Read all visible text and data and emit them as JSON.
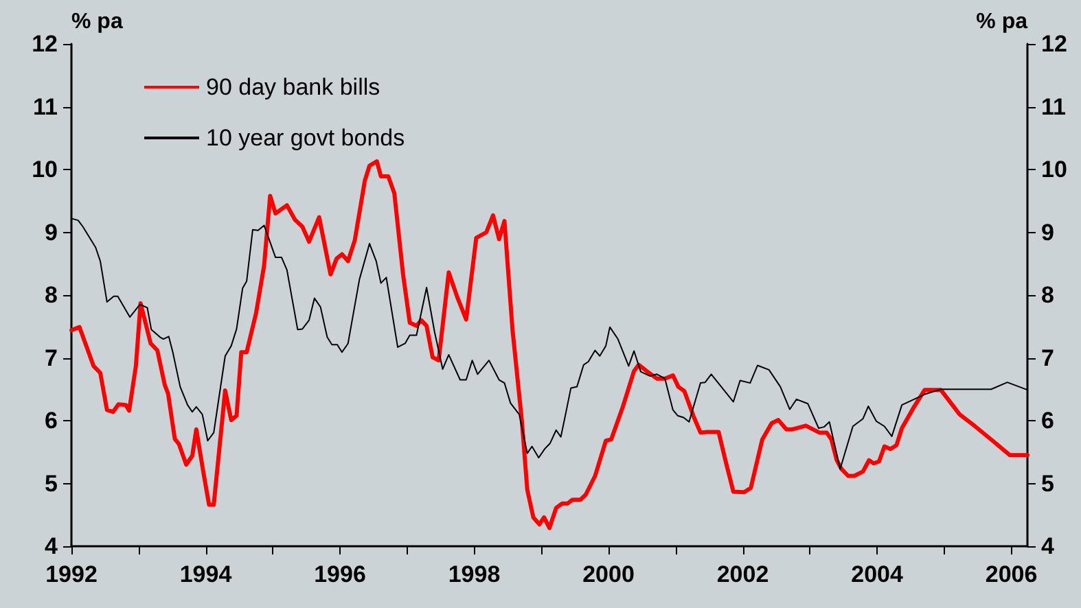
{
  "chart_data": {
    "type": "line",
    "ylabel": "% pa",
    "y2label": "% pa",
    "xlim": [
      1992,
      2006.24
    ],
    "xticks": [
      1992,
      {
        "value": 1993,
        "label": null
      },
      1994,
      {
        "value": 1995,
        "label": null
      },
      1996,
      {
        "value": 1997,
        "label": null
      },
      1998,
      {
        "value": 1999,
        "label": null
      },
      2000,
      {
        "value": 2001,
        "label": null
      },
      2002,
      {
        "value": 2003,
        "label": null
      },
      2004,
      {
        "value": 2005,
        "label": null
      },
      2006
    ],
    "ylim": [
      4,
      12
    ],
    "yticks": [
      4,
      5,
      6,
      7,
      8,
      9,
      10,
      11,
      12
    ],
    "y2lim": [
      4,
      12
    ],
    "y2ticks": [
      4,
      5,
      6,
      7,
      8,
      9,
      10,
      11,
      12
    ],
    "grid": false,
    "legend": "top left",
    "series": [
      {
        "name": "90 day bank bills",
        "color": "#ff0000",
        "x": [
          1992.0,
          1992.12,
          1992.33,
          1992.43,
          1992.53,
          1992.62,
          1992.7,
          1992.81,
          1992.86,
          1992.96,
          1993.03,
          1993.18,
          1993.28,
          1993.39,
          1993.44,
          1993.54,
          1993.6,
          1993.71,
          1993.8,
          1993.86,
          1993.97,
          1994.05,
          1994.12,
          1994.29,
          1994.38,
          1994.46,
          1994.53,
          1994.61,
          1994.75,
          1994.87,
          1994.96,
          1995.04,
          1995.21,
          1995.33,
          1995.44,
          1995.54,
          1995.69,
          1995.86,
          1995.95,
          1996.03,
          1996.12,
          1996.22,
          1996.37,
          1996.44,
          1996.55,
          1996.61,
          1996.72,
          1996.81,
          1996.94,
          1997.04,
          1997.14,
          1997.21,
          1997.29,
          1997.38,
          1997.47,
          1997.62,
          1997.75,
          1997.88,
          1998.03,
          1998.18,
          1998.28,
          1998.37,
          1998.45,
          1998.57,
          1998.71,
          1998.79,
          1998.88,
          1998.97,
          1999.04,
          1999.12,
          1999.22,
          1999.31,
          1999.39,
          1999.46,
          1999.58,
          1999.66,
          1999.8,
          1999.96,
          2000.04,
          2000.21,
          2000.38,
          2000.45,
          2000.58,
          2000.72,
          2000.84,
          2000.96,
          2001.04,
          2001.13,
          2001.27,
          2001.37,
          2001.47,
          2001.64,
          2001.75,
          2001.86,
          2002.02,
          2002.12,
          2002.29,
          2002.43,
          2002.53,
          2002.65,
          2002.73,
          2002.94,
          2003.14,
          2003.25,
          2003.32,
          2003.4,
          2003.47,
          2003.57,
          2003.66,
          2003.79,
          2003.88,
          2003.95,
          2004.03,
          2004.11,
          2004.2,
          2004.29,
          2004.37,
          2004.54,
          2004.71,
          2004.85,
          2004.95,
          2005.23,
          2005.46,
          2005.7,
          2005.98,
          2006.24
        ],
        "values": [
          7.44,
          7.49,
          6.87,
          6.76,
          6.17,
          6.14,
          6.26,
          6.25,
          6.16,
          6.87,
          7.87,
          7.23,
          7.12,
          6.57,
          6.43,
          5.71,
          5.63,
          5.3,
          5.44,
          5.86,
          5.15,
          4.66,
          4.66,
          6.48,
          6.01,
          6.08,
          7.09,
          7.09,
          7.71,
          8.47,
          9.58,
          9.3,
          9.43,
          9.2,
          9.09,
          8.85,
          9.24,
          8.33,
          8.58,
          8.65,
          8.54,
          8.87,
          9.82,
          10.06,
          10.13,
          9.89,
          9.89,
          9.62,
          8.33,
          7.56,
          7.51,
          7.6,
          7.51,
          7.01,
          6.96,
          8.36,
          7.96,
          7.61,
          8.91,
          9.0,
          9.27,
          8.89,
          9.18,
          7.45,
          5.99,
          4.9,
          4.46,
          4.35,
          4.46,
          4.29,
          4.61,
          4.68,
          4.68,
          4.74,
          4.74,
          4.82,
          5.12,
          5.68,
          5.7,
          6.21,
          6.79,
          6.89,
          6.78,
          6.67,
          6.67,
          6.72,
          6.54,
          6.47,
          6.06,
          5.81,
          5.82,
          5.82,
          5.33,
          4.87,
          4.86,
          4.93,
          5.7,
          5.96,
          6.01,
          5.86,
          5.86,
          5.92,
          5.81,
          5.81,
          5.7,
          5.37,
          5.23,
          5.12,
          5.12,
          5.19,
          5.37,
          5.32,
          5.35,
          5.59,
          5.55,
          5.61,
          5.88,
          6.2,
          6.49,
          6.49,
          6.49,
          6.1,
          5.91,
          5.7,
          5.45,
          5.45
        ]
      },
      {
        "name": "10 year govt bonds",
        "color": "#000000",
        "x": [
          1992.0,
          1992.1,
          1992.17,
          1992.36,
          1992.43,
          1992.53,
          1992.63,
          1992.69,
          1992.87,
          1993.02,
          1993.13,
          1993.19,
          1993.32,
          1993.37,
          1993.45,
          1993.51,
          1993.62,
          1993.73,
          1993.8,
          1993.86,
          1993.95,
          1994.03,
          1994.12,
          1994.29,
          1994.38,
          1994.46,
          1994.55,
          1994.61,
          1994.7,
          1994.78,
          1994.87,
          1994.96,
          1995.04,
          1995.13,
          1995.21,
          1995.37,
          1995.44,
          1995.54,
          1995.62,
          1995.71,
          1995.81,
          1995.88,
          1995.96,
          1996.03,
          1996.12,
          1996.29,
          1996.44,
          1996.54,
          1996.61,
          1996.69,
          1996.86,
          1996.97,
          1997.04,
          1997.14,
          1997.29,
          1997.41,
          1997.53,
          1997.62,
          1997.79,
          1997.88,
          1997.97,
          1998.05,
          1998.22,
          1998.37,
          1998.45,
          1998.54,
          1998.67,
          1998.79,
          1998.86,
          1998.96,
          1999.05,
          1999.13,
          1999.22,
          1999.29,
          1999.36,
          1999.44,
          1999.53,
          1999.63,
          1999.7,
          1999.8,
          1999.87,
          1999.96,
          2000.02,
          2000.14,
          2000.3,
          2000.38,
          2000.48,
          2000.62,
          2000.72,
          2000.84,
          2000.96,
          2001.03,
          2001.12,
          2001.2,
          2001.37,
          2001.44,
          2001.53,
          2001.68,
          2001.86,
          2001.96,
          2002.11,
          2002.22,
          2002.39,
          2002.56,
          2002.7,
          2002.8,
          2002.97,
          2003.13,
          2003.21,
          2003.29,
          2003.45,
          2003.64,
          2003.79,
          2003.87,
          2003.99,
          2004.11,
          2004.22,
          2004.37,
          2004.71,
          2004.95,
          2005.7,
          2005.94,
          2006.24
        ],
        "values": [
          9.22,
          9.19,
          9.09,
          8.76,
          8.54,
          7.89,
          7.98,
          7.98,
          7.65,
          7.85,
          7.8,
          7.45,
          7.33,
          7.3,
          7.34,
          7.09,
          6.54,
          6.25,
          6.14,
          6.22,
          6.1,
          5.68,
          5.81,
          7.03,
          7.19,
          7.46,
          8.11,
          8.22,
          9.04,
          9.03,
          9.11,
          8.84,
          8.6,
          8.6,
          8.4,
          7.45,
          7.46,
          7.6,
          7.95,
          7.81,
          7.33,
          7.21,
          7.21,
          7.09,
          7.23,
          8.25,
          8.82,
          8.54,
          8.19,
          8.28,
          7.17,
          7.23,
          7.36,
          7.36,
          8.12,
          7.41,
          6.82,
          7.05,
          6.65,
          6.65,
          6.96,
          6.74,
          6.96,
          6.65,
          6.6,
          6.28,
          6.1,
          5.48,
          5.59,
          5.41,
          5.55,
          5.64,
          5.85,
          5.74,
          6.1,
          6.52,
          6.54,
          6.89,
          6.94,
          7.12,
          7.03,
          7.19,
          7.49,
          7.3,
          6.87,
          7.11,
          6.78,
          6.71,
          6.74,
          6.67,
          6.17,
          6.08,
          6.05,
          5.98,
          6.6,
          6.61,
          6.74,
          6.54,
          6.3,
          6.64,
          6.6,
          6.88,
          6.81,
          6.54,
          6.18,
          6.34,
          6.27,
          5.88,
          5.9,
          5.98,
          5.23,
          5.91,
          6.03,
          6.23,
          5.99,
          5.91,
          5.75,
          6.25,
          6.42,
          6.5,
          6.5,
          6.61,
          6.49
        ]
      }
    ]
  }
}
